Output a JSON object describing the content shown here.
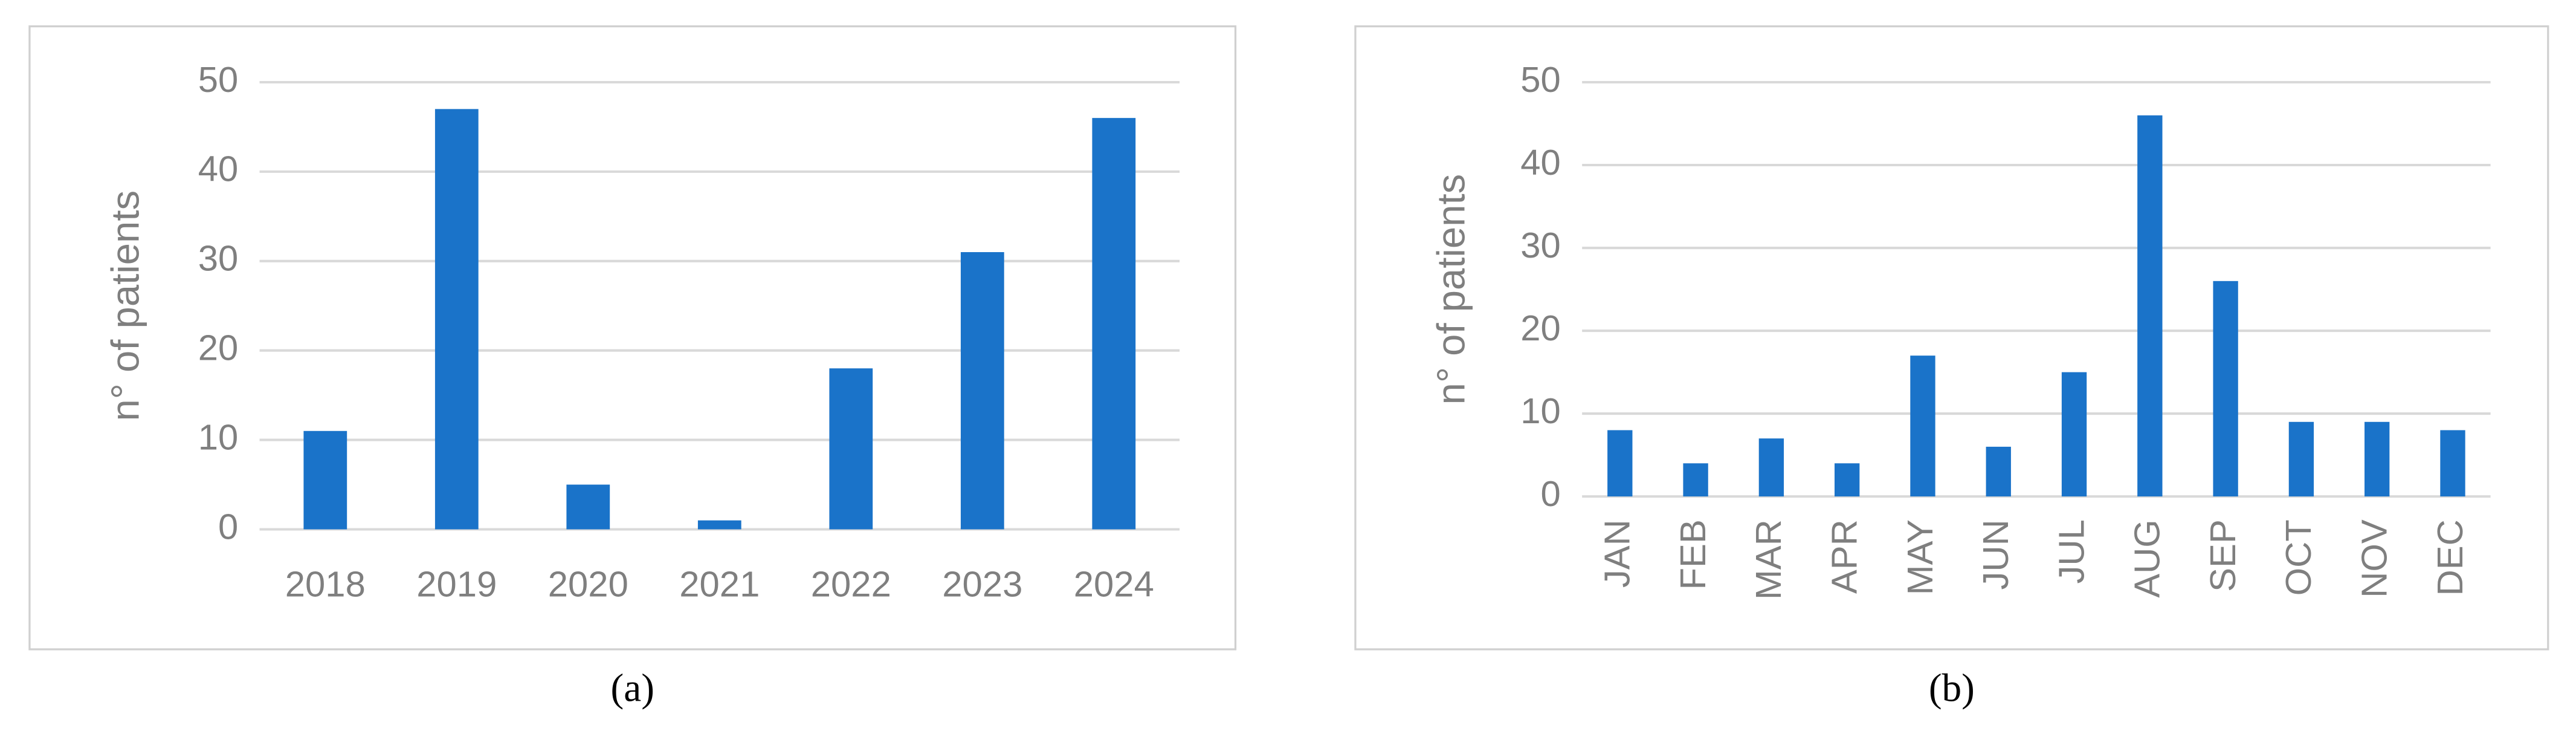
{
  "chart_data": [
    {
      "type": "bar",
      "caption": "(a)",
      "y_label": "n° of patients",
      "categories": [
        "2018",
        "2019",
        "2020",
        "2021",
        "2022",
        "2023",
        "2024"
      ],
      "values": [
        11,
        47,
        5,
        1,
        18,
        31,
        46
      ],
      "color": "#1a73c9",
      "ylim": [
        0,
        50
      ],
      "yticks": [
        0,
        10,
        20,
        30,
        40,
        50
      ],
      "grid": true
    },
    {
      "type": "bar",
      "caption": "(b)",
      "y_label": "n° of patients",
      "categories": [
        "JAN",
        "FEB",
        "MAR",
        "APR",
        "MAY",
        "JUN",
        "JUL",
        "AUG",
        "SEP",
        "OCT",
        "NOV",
        "DEC"
      ],
      "values": [
        8,
        4,
        7,
        4,
        17,
        6,
        15,
        46,
        26,
        9,
        9,
        8
      ],
      "color": "#1a73c9",
      "ylim": [
        0,
        50
      ],
      "yticks": [
        0,
        10,
        20,
        30,
        40,
        50
      ],
      "grid": true
    }
  ]
}
